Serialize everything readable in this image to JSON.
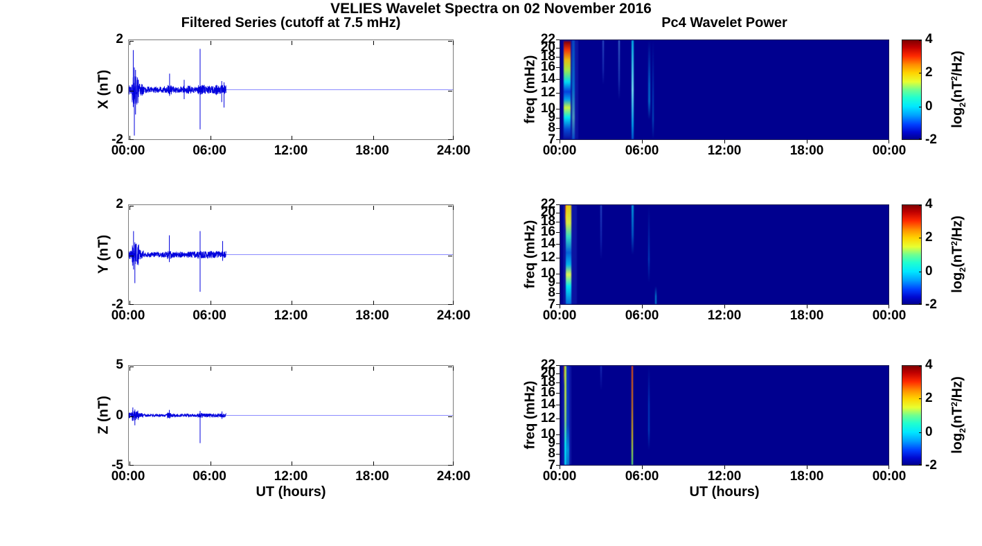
{
  "title": "VELIES Wavelet Spectra on 02 November 2016",
  "left_title": "Filtered Series (cutoff at 7.5 mHz)",
  "right_title": "Pc4 Wavelet Power",
  "xlabel": "UT (hours)",
  "colorbar": {
    "tick_labels": [
      "4",
      "2",
      "0",
      "-2"
    ],
    "tick_values": [
      4,
      2,
      0,
      -2
    ],
    "zlim": [
      -2,
      4
    ],
    "label": {
      "p1": "log",
      "sub": "2",
      "p2": "(nT",
      "sup": "2",
      "p3": "/Hz)"
    },
    "gradient": [
      [
        0,
        "#7f0000"
      ],
      [
        0.07,
        "#c00000"
      ],
      [
        0.16,
        "#ff2a00"
      ],
      [
        0.25,
        "#ff9000"
      ],
      [
        0.33,
        "#ffd300"
      ],
      [
        0.42,
        "#e8ff30"
      ],
      [
        0.5,
        "#70ff90"
      ],
      [
        0.58,
        "#20ffd0"
      ],
      [
        0.67,
        "#00e8ff"
      ],
      [
        0.76,
        "#00a0ff"
      ],
      [
        0.85,
        "#0040ff"
      ],
      [
        0.93,
        "#0008d0"
      ],
      [
        1,
        "#00008f"
      ]
    ]
  },
  "chart_data": [
    {
      "type": "line",
      "id": "x-filtered-series",
      "ylabel": "X (nT)",
      "ylim": [
        -2,
        2
      ],
      "yticks": [
        2,
        0,
        -2
      ],
      "ytick_labels": [
        "2",
        "0",
        "-2"
      ],
      "x_range_hours": [
        0,
        24
      ],
      "xtick_labels": [
        "00:00",
        "06:00",
        "12:00",
        "18:00",
        "24:00"
      ],
      "line_color": "#0000dd",
      "quiet_line_color": "#8a8aff",
      "active_until_hour": 7.2,
      "baseline": 0,
      "noise_segments": [
        [
          0,
          0.25,
          0.22
        ],
        [
          0.25,
          0.75,
          0.6
        ],
        [
          0.75,
          1.1,
          0.25
        ],
        [
          1.1,
          2.85,
          0.13
        ],
        [
          2.85,
          3.15,
          0.22
        ],
        [
          3.15,
          4.0,
          0.13
        ],
        [
          4.0,
          4.6,
          0.17
        ],
        [
          4.6,
          5.1,
          0.14
        ],
        [
          5.1,
          5.6,
          0.2
        ],
        [
          5.6,
          6.3,
          0.16
        ],
        [
          6.3,
          7.2,
          0.2
        ]
      ],
      "spikes": [
        [
          0.33,
          1.6,
          -0.7
        ],
        [
          0.41,
          0.9,
          -1.85
        ],
        [
          0.5,
          0.8,
          -1.0
        ],
        [
          3.02,
          0.65,
          -0.25
        ],
        [
          4.1,
          0.4,
          -0.38
        ],
        [
          5.28,
          1.65,
          -1.6
        ],
        [
          6.88,
          0.35,
          -0.5
        ],
        [
          7.05,
          0.3,
          -0.72
        ]
      ]
    },
    {
      "type": "heatmap",
      "id": "x-wavelet-power",
      "ylabel": "freq (mHz)",
      "yscale": "log",
      "ylim": [
        7,
        22
      ],
      "yticks": [
        22,
        20,
        18,
        16,
        14,
        12,
        10,
        9,
        8,
        7
      ],
      "x_range_hours": [
        0,
        24
      ],
      "xtick_labels": [
        "00:00",
        "06:00",
        "12:00",
        "18:00",
        "00:00"
      ],
      "zlim": [
        -2,
        4
      ],
      "colormap": "jet",
      "background": "#00008f",
      "features": [
        {
          "t": 0.75,
          "w": 1.1,
          "stops": [
            [
              0,
              "rgba(40,70,210,0.3)"
            ],
            [
              1,
              "rgba(40,70,210,0.25)"
            ]
          ]
        },
        {
          "t": 0.5,
          "w": 0.5,
          "stops": [
            [
              0,
              "rgba(0,0,160,0)"
            ],
            [
              0.02,
              "rgba(150,0,0,0.95)"
            ],
            [
              0.1,
              "rgba(255,60,0,0.95)"
            ],
            [
              0.2,
              "rgba(255,205,0,0.9)"
            ],
            [
              0.3,
              "rgba(180,255,60,0.9)"
            ],
            [
              0.42,
              "rgba(0,255,255,0.85)"
            ],
            [
              0.52,
              "rgba(0,90,255,0.65)"
            ],
            [
              0.6,
              "rgba(0,200,255,0.8)"
            ],
            [
              0.68,
              "rgba(215,255,60,0.95)"
            ],
            [
              0.78,
              "rgba(0,255,255,0.9)"
            ],
            [
              0.9,
              "rgba(0,120,255,0.55)"
            ],
            [
              1,
              "rgba(0,0,160,0)"
            ]
          ]
        },
        {
          "t": 0.95,
          "w": 0.22,
          "stops": [
            [
              0,
              "rgba(0,180,255,0.3)"
            ],
            [
              0.5,
              "rgba(0,220,255,0.45)"
            ],
            [
              0.78,
              "rgba(130,255,210,0.55)"
            ],
            [
              1,
              "rgba(0,160,255,0.4)"
            ]
          ]
        },
        {
          "t": 3.15,
          "w": 0.12,
          "stops": [
            [
              0,
              "rgba(90,160,255,0.5)"
            ],
            [
              0.3,
              "rgba(70,140,255,0.3)"
            ],
            [
              0.45,
              "rgba(0,0,160,0)"
            ],
            [
              1,
              "rgba(0,0,160,0)"
            ]
          ]
        },
        {
          "t": 4.3,
          "w": 0.12,
          "stops": [
            [
              0,
              "rgba(110,200,255,0.55)"
            ],
            [
              0.4,
              "rgba(80,170,255,0.35)"
            ],
            [
              0.6,
              "rgba(0,0,160,0)"
            ],
            [
              1,
              "rgba(0,0,160,0)"
            ]
          ]
        },
        {
          "t": 5.3,
          "w": 0.14,
          "stops": [
            [
              0,
              "rgba(0,230,255,0.75)"
            ],
            [
              0.5,
              "rgba(130,255,255,0.9)"
            ],
            [
              0.85,
              "rgba(0,200,255,0.8)"
            ],
            [
              1,
              "rgba(0,150,255,0.55)"
            ]
          ]
        },
        {
          "t": 6.5,
          "w": 0.12,
          "stops": [
            [
              0,
              "rgba(0,0,160,0)"
            ],
            [
              0.45,
              "rgba(0,190,255,0.5)"
            ],
            [
              0.62,
              "rgba(0,210,255,0.5)"
            ],
            [
              0.8,
              "rgba(0,0,160,0)"
            ],
            [
              1,
              "rgba(0,0,160,0)"
            ]
          ]
        },
        {
          "t": 6.8,
          "w": 0.1,
          "stops": [
            [
              0,
              "rgba(0,0,160,0)"
            ],
            [
              0.55,
              "rgba(0,160,255,0.35)"
            ],
            [
              0.8,
              "rgba(0,190,255,0.4)"
            ],
            [
              1,
              "rgba(0,0,160,0)"
            ]
          ]
        }
      ]
    },
    {
      "type": "line",
      "id": "y-filtered-series",
      "ylabel": "Y (nT)",
      "ylim": [
        -2,
        2
      ],
      "yticks": [
        2,
        0,
        -2
      ],
      "ytick_labels": [
        "2",
        "0",
        "-2"
      ],
      "x_range_hours": [
        0,
        24
      ],
      "xtick_labels": [
        "00:00",
        "06:00",
        "12:00",
        "18:00",
        "24:00"
      ],
      "line_color": "#0000dd",
      "quiet_line_color": "#8a8aff",
      "active_until_hour": 7.2,
      "baseline": 0,
      "noise_segments": [
        [
          0,
          0.25,
          0.18
        ],
        [
          0.25,
          0.75,
          0.45
        ],
        [
          0.75,
          1.1,
          0.2
        ],
        [
          1.1,
          2.85,
          0.11
        ],
        [
          2.85,
          3.2,
          0.19
        ],
        [
          3.2,
          4.4,
          0.12
        ],
        [
          4.4,
          5.1,
          0.13
        ],
        [
          5.1,
          5.6,
          0.16
        ],
        [
          5.6,
          7.2,
          0.15
        ]
      ],
      "spikes": [
        [
          0.35,
          0.95,
          -0.6
        ],
        [
          0.45,
          0.5,
          -1.15
        ],
        [
          3.0,
          0.78,
          -0.3
        ],
        [
          5.28,
          0.95,
          -1.5
        ],
        [
          6.95,
          0.55,
          -0.25
        ]
      ]
    },
    {
      "type": "heatmap",
      "id": "y-wavelet-power",
      "ylabel": "freq (mHz)",
      "yscale": "log",
      "ylim": [
        7,
        22
      ],
      "yticks": [
        22,
        20,
        18,
        16,
        14,
        12,
        10,
        9,
        8,
        7
      ],
      "x_range_hours": [
        0,
        24
      ],
      "xtick_labels": [
        "00:00",
        "06:00",
        "12:00",
        "18:00",
        "00:00"
      ],
      "zlim": [
        -2,
        4
      ],
      "colormap": "jet",
      "background": "#00008f",
      "features": [
        {
          "t": 0.7,
          "w": 1.0,
          "stops": [
            [
              0,
              "rgba(40,70,210,0.3)"
            ],
            [
              1,
              "rgba(40,70,210,0.25)"
            ]
          ]
        },
        {
          "t": 0.42,
          "w": 0.16,
          "stops": [
            [
              0,
              "rgba(205,40,0,0.9)"
            ],
            [
              0.12,
              "rgba(255,120,0,0.75)"
            ],
            [
              0.25,
              "rgba(0,0,160,0)"
            ],
            [
              1,
              "rgba(0,0,160,0)"
            ]
          ]
        },
        {
          "t": 0.6,
          "w": 0.42,
          "stops": [
            [
              0,
              "rgba(255,220,0,0.9)"
            ],
            [
              0.18,
              "rgba(235,255,60,0.9)"
            ],
            [
              0.32,
              "rgba(60,255,205,0.85)"
            ],
            [
              0.48,
              "rgba(0,150,255,0.6)"
            ],
            [
              0.6,
              "rgba(0,220,255,0.8)"
            ],
            [
              0.7,
              "rgba(235,255,80,0.95)"
            ],
            [
              0.82,
              "rgba(0,255,255,0.9)"
            ],
            [
              1,
              "rgba(0,160,255,0.65)"
            ]
          ]
        },
        {
          "t": 3.0,
          "w": 0.12,
          "stops": [
            [
              0,
              "rgba(80,150,255,0.5)"
            ],
            [
              0.35,
              "rgba(60,130,255,0.3)"
            ],
            [
              0.55,
              "rgba(0,0,160,0)"
            ],
            [
              1,
              "rgba(0,0,160,0)"
            ]
          ]
        },
        {
          "t": 5.3,
          "w": 0.12,
          "stops": [
            [
              0,
              "rgba(0,220,255,0.7)"
            ],
            [
              0.3,
              "rgba(0,190,255,0.45)"
            ],
            [
              0.5,
              "rgba(0,0,160,0)"
            ],
            [
              1,
              "rgba(0,0,160,0)"
            ]
          ]
        },
        {
          "t": 6.5,
          "w": 0.1,
          "stops": [
            [
              0,
              "rgba(0,0,160,0)"
            ],
            [
              0.55,
              "rgba(0,170,255,0.4)"
            ],
            [
              0.78,
              "rgba(0,0,160,0)"
            ],
            [
              1,
              "rgba(0,0,160,0)"
            ]
          ]
        },
        {
          "t": 7.0,
          "w": 0.09,
          "stops": [
            [
              0,
              "rgba(0,0,160,0)"
            ],
            [
              0.82,
              "rgba(0,0,160,0)"
            ],
            [
              0.92,
              "rgba(0,220,255,0.6)"
            ],
            [
              1,
              "rgba(0,230,255,0.6)"
            ]
          ]
        }
      ]
    },
    {
      "type": "line",
      "id": "z-filtered-series",
      "ylabel": "Z (nT)",
      "ylim": [
        -5,
        5
      ],
      "yticks": [
        5,
        0,
        -5
      ],
      "ytick_labels": [
        "5",
        "0",
        "-5"
      ],
      "x_range_hours": [
        0,
        24
      ],
      "xtick_labels": [
        "00:00",
        "06:00",
        "12:00",
        "18:00",
        "24:00"
      ],
      "line_color": "#0000dd",
      "quiet_line_color": "#8a8aff",
      "active_until_hour": 7.2,
      "baseline": 0,
      "noise_segments": [
        [
          0,
          0.25,
          0.3
        ],
        [
          0.25,
          0.7,
          0.55
        ],
        [
          0.7,
          1.1,
          0.25
        ],
        [
          1.1,
          2.85,
          0.14
        ],
        [
          2.85,
          3.1,
          0.3
        ],
        [
          3.1,
          5.1,
          0.16
        ],
        [
          5.1,
          5.5,
          0.25
        ],
        [
          5.5,
          7.2,
          0.2
        ]
      ],
      "spikes": [
        [
          0.3,
          0.8,
          -0.55
        ],
        [
          0.45,
          0.6,
          -1.0
        ],
        [
          3.0,
          0.55,
          -0.3
        ],
        [
          5.28,
          0.45,
          -2.8
        ],
        [
          6.9,
          0.4,
          -0.35
        ]
      ]
    },
    {
      "type": "heatmap",
      "id": "z-wavelet-power",
      "ylabel": "freq (mHz)",
      "yscale": "log",
      "ylim": [
        7,
        22
      ],
      "yticks": [
        22,
        20,
        18,
        16,
        14,
        12,
        10,
        9,
        8,
        7
      ],
      "x_range_hours": [
        0,
        24
      ],
      "xtick_labels": [
        "00:00",
        "06:00",
        "12:00",
        "18:00",
        "00:00"
      ],
      "zlim": [
        -2,
        4
      ],
      "colormap": "jet",
      "background": "#00008f",
      "features": [
        {
          "t": 0.45,
          "w": 0.7,
          "stops": [
            [
              0,
              "rgba(40,70,210,0.3)"
            ],
            [
              1,
              "rgba(40,70,210,0.3)"
            ]
          ]
        },
        {
          "t": 0.3,
          "w": 0.08,
          "stops": [
            [
              0,
              "rgba(205,30,0,0.9)"
            ],
            [
              0.1,
              "rgba(255,100,0,0.55)"
            ],
            [
              0.2,
              "rgba(0,0,160,0)"
            ],
            [
              1,
              "rgba(0,0,160,0)"
            ]
          ]
        },
        {
          "t": 0.38,
          "w": 0.12,
          "stops": [
            [
              0,
              "rgba(185,255,60,0.9)"
            ],
            [
              0.3,
              "rgba(205,255,60,0.9)"
            ],
            [
              0.55,
              "rgba(155,255,120,0.85)"
            ],
            [
              0.8,
              "rgba(0,255,255,0.9)"
            ],
            [
              1,
              "rgba(0,230,255,0.9)"
            ]
          ]
        },
        {
          "t": 0.54,
          "w": 0.2,
          "stops": [
            [
              0,
              "rgba(0,80,255,0.35)"
            ],
            [
              0.6,
              "rgba(0,140,255,0.4)"
            ],
            [
              0.85,
              "rgba(0,220,255,0.65)"
            ],
            [
              1,
              "rgba(0,200,255,0.55)"
            ]
          ]
        },
        {
          "t": 3.0,
          "w": 0.1,
          "stops": [
            [
              0,
              "rgba(70,130,255,0.4)"
            ],
            [
              0.25,
              "rgba(0,0,160,0)"
            ],
            [
              1,
              "rgba(0,0,160,0)"
            ]
          ]
        },
        {
          "t": 5.25,
          "w": 0.12,
          "stops": [
            [
              0,
              "rgba(255,90,0,0.95)"
            ],
            [
              0.4,
              "rgba(255,145,0,0.9)"
            ],
            [
              0.7,
              "rgba(255,225,0,0.9)"
            ],
            [
              0.85,
              "rgba(185,255,60,0.95)"
            ],
            [
              1,
              "rgba(110,255,110,0.95)"
            ]
          ]
        },
        {
          "t": 6.5,
          "w": 0.1,
          "stops": [
            [
              0,
              "rgba(0,0,160,0)"
            ],
            [
              0.4,
              "rgba(0,150,255,0.4)"
            ],
            [
              0.65,
              "rgba(0,170,255,0.4)"
            ],
            [
              0.85,
              "rgba(0,0,160,0)"
            ],
            [
              1,
              "rgba(0,0,160,0)"
            ]
          ]
        }
      ]
    }
  ]
}
